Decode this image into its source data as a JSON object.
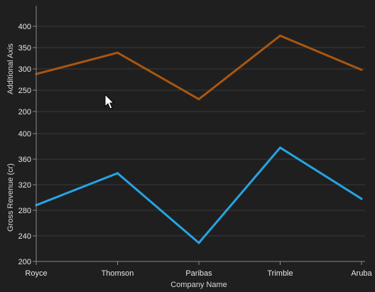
{
  "chart_data": {
    "type": "line",
    "categories": [
      "Royce",
      "Thomson",
      "Paribas",
      "Trimble",
      "Aruba"
    ],
    "xlabel": "Company Name",
    "panels": [
      {
        "ylabel": "Additional Axis",
        "ylim": [
          200,
          400
        ],
        "ticks": [
          200,
          250,
          300,
          350,
          400
        ],
        "series": [
          {
            "values": [
              288,
              338,
              229,
              378,
              298
            ],
            "color": "#a95611"
          }
        ]
      },
      {
        "ylabel": "Gross Revenue (cr)",
        "ylim": [
          200,
          400
        ],
        "ticks": [
          200,
          240,
          280,
          320,
          360,
          400
        ],
        "series": [
          {
            "values": [
              288,
              338,
              229,
              378,
              298
            ],
            "color": "#27a3e2"
          }
        ]
      }
    ],
    "grid": true,
    "legend": "none"
  },
  "colors": {
    "background": "#1f1f1f",
    "grid": "#3a3a3a",
    "axis": "#8a8a8a",
    "text": "#e6e6e6"
  },
  "cursor": "arrow-cursor"
}
